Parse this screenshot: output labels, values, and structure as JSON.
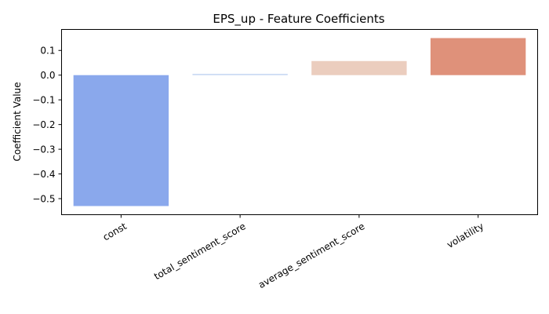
{
  "chart_data": {
    "type": "bar",
    "title": "EPS_up - Feature Coefficients",
    "xlabel": "",
    "ylabel": "Coefficient Value",
    "categories": [
      "const",
      "total_sentiment_score",
      "average_sentiment_score",
      "volatility"
    ],
    "values": [
      -0.53,
      0.005,
      0.057,
      0.15
    ],
    "colors": [
      "#8aa8ec",
      "#c6d6f2",
      "#ebcdbe",
      "#df917a"
    ],
    "ylim": [
      -0.565,
      0.185
    ],
    "yticks": [
      -0.5,
      -0.4,
      -0.3,
      -0.2,
      -0.1,
      0.0,
      0.1
    ],
    "ytick_labels": [
      "−0.5",
      "−0.4",
      "−0.3",
      "−0.2",
      "−0.1",
      "0.0",
      "0.1"
    ],
    "xtick_rotation_deg": 30,
    "grid": false,
    "legend": "none"
  }
}
